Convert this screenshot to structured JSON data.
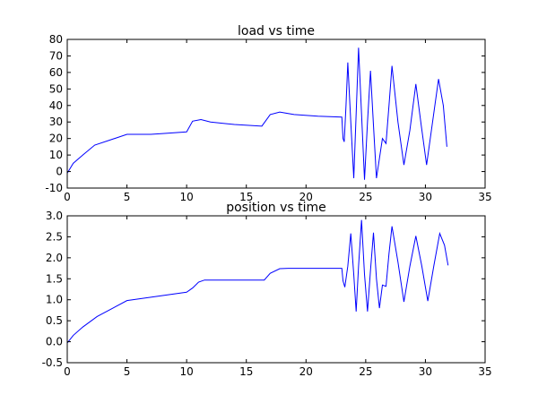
{
  "chart_data": [
    {
      "type": "line",
      "title": "load vs time",
      "xlim": [
        0,
        35
      ],
      "xticks": [
        0,
        5,
        10,
        15,
        20,
        25,
        30,
        35
      ],
      "ylim": [
        -10,
        80
      ],
      "yticks": [
        -10,
        0,
        10,
        20,
        30,
        40,
        50,
        60,
        70,
        80
      ],
      "series": [
        {
          "color": "#0000ff",
          "x": [
            0,
            0.5,
            1.3,
            2.3,
            5,
            7,
            8,
            10,
            10.5,
            11.2,
            12,
            14,
            16.3,
            17,
            17.8,
            19,
            21,
            23,
            23.1,
            23.2,
            23.35,
            23.5,
            23.75,
            24.0,
            24.2,
            24.4,
            24.65,
            24.9,
            25.15,
            25.4,
            25.65,
            25.9,
            26.15,
            26.4,
            26.7,
            26.95,
            27.2,
            27.7,
            28.2,
            28.7,
            29.2,
            29.65,
            30.1,
            30.6,
            31.1,
            31.5,
            31.8
          ],
          "values": [
            -1,
            5,
            10,
            16,
            22.5,
            22.5,
            23,
            24,
            30.5,
            31.5,
            30,
            28.5,
            27.5,
            34.5,
            36,
            34.5,
            33.5,
            33,
            20,
            18,
            40,
            66,
            30,
            -4,
            35,
            75,
            35,
            -5,
            30,
            61,
            28,
            -4,
            8,
            20,
            17,
            40,
            64,
            30,
            4,
            25,
            53,
            28,
            4,
            30,
            56,
            40,
            15
          ]
        }
      ]
    },
    {
      "type": "line",
      "title": "position vs time",
      "xlim": [
        0,
        35
      ],
      "xticks": [
        0,
        5,
        10,
        15,
        20,
        25,
        30,
        35
      ],
      "ylim": [
        -0.5,
        3.0
      ],
      "yticks": [
        -0.5,
        {
          "value": 0,
          "label": "0.0"
        },
        0.5,
        {
          "value": 1,
          "label": "1.0"
        },
        1.5,
        {
          "value": 2,
          "label": "2.0"
        },
        2.5,
        {
          "value": 3,
          "label": "3.0"
        }
      ],
      "series": [
        {
          "color": "#0000ff",
          "x": [
            0,
            0.5,
            1.3,
            2.5,
            5,
            7,
            10,
            10.5,
            11,
            11.5,
            16.5,
            17,
            17.8,
            18.5,
            23,
            23.1,
            23.25,
            23.5,
            23.75,
            24.0,
            24.2,
            24.4,
            24.65,
            24.9,
            25.15,
            25.4,
            25.65,
            25.9,
            26.15,
            26.4,
            26.7,
            26.95,
            27.2,
            27.7,
            28.2,
            28.7,
            29.2,
            29.7,
            30.2,
            30.7,
            31.2,
            31.6,
            31.9
          ],
          "values": [
            -0.03,
            0.15,
            0.35,
            0.6,
            0.98,
            1.06,
            1.18,
            1.28,
            1.42,
            1.47,
            1.47,
            1.63,
            1.74,
            1.75,
            1.75,
            1.45,
            1.3,
            1.8,
            2.58,
            1.6,
            0.72,
            1.8,
            2.9,
            1.6,
            0.72,
            1.7,
            2.6,
            1.5,
            0.8,
            1.35,
            1.32,
            2.1,
            2.75,
            1.9,
            0.95,
            1.8,
            2.52,
            1.8,
            0.97,
            1.8,
            2.58,
            2.3,
            1.82
          ]
        }
      ]
    }
  ]
}
